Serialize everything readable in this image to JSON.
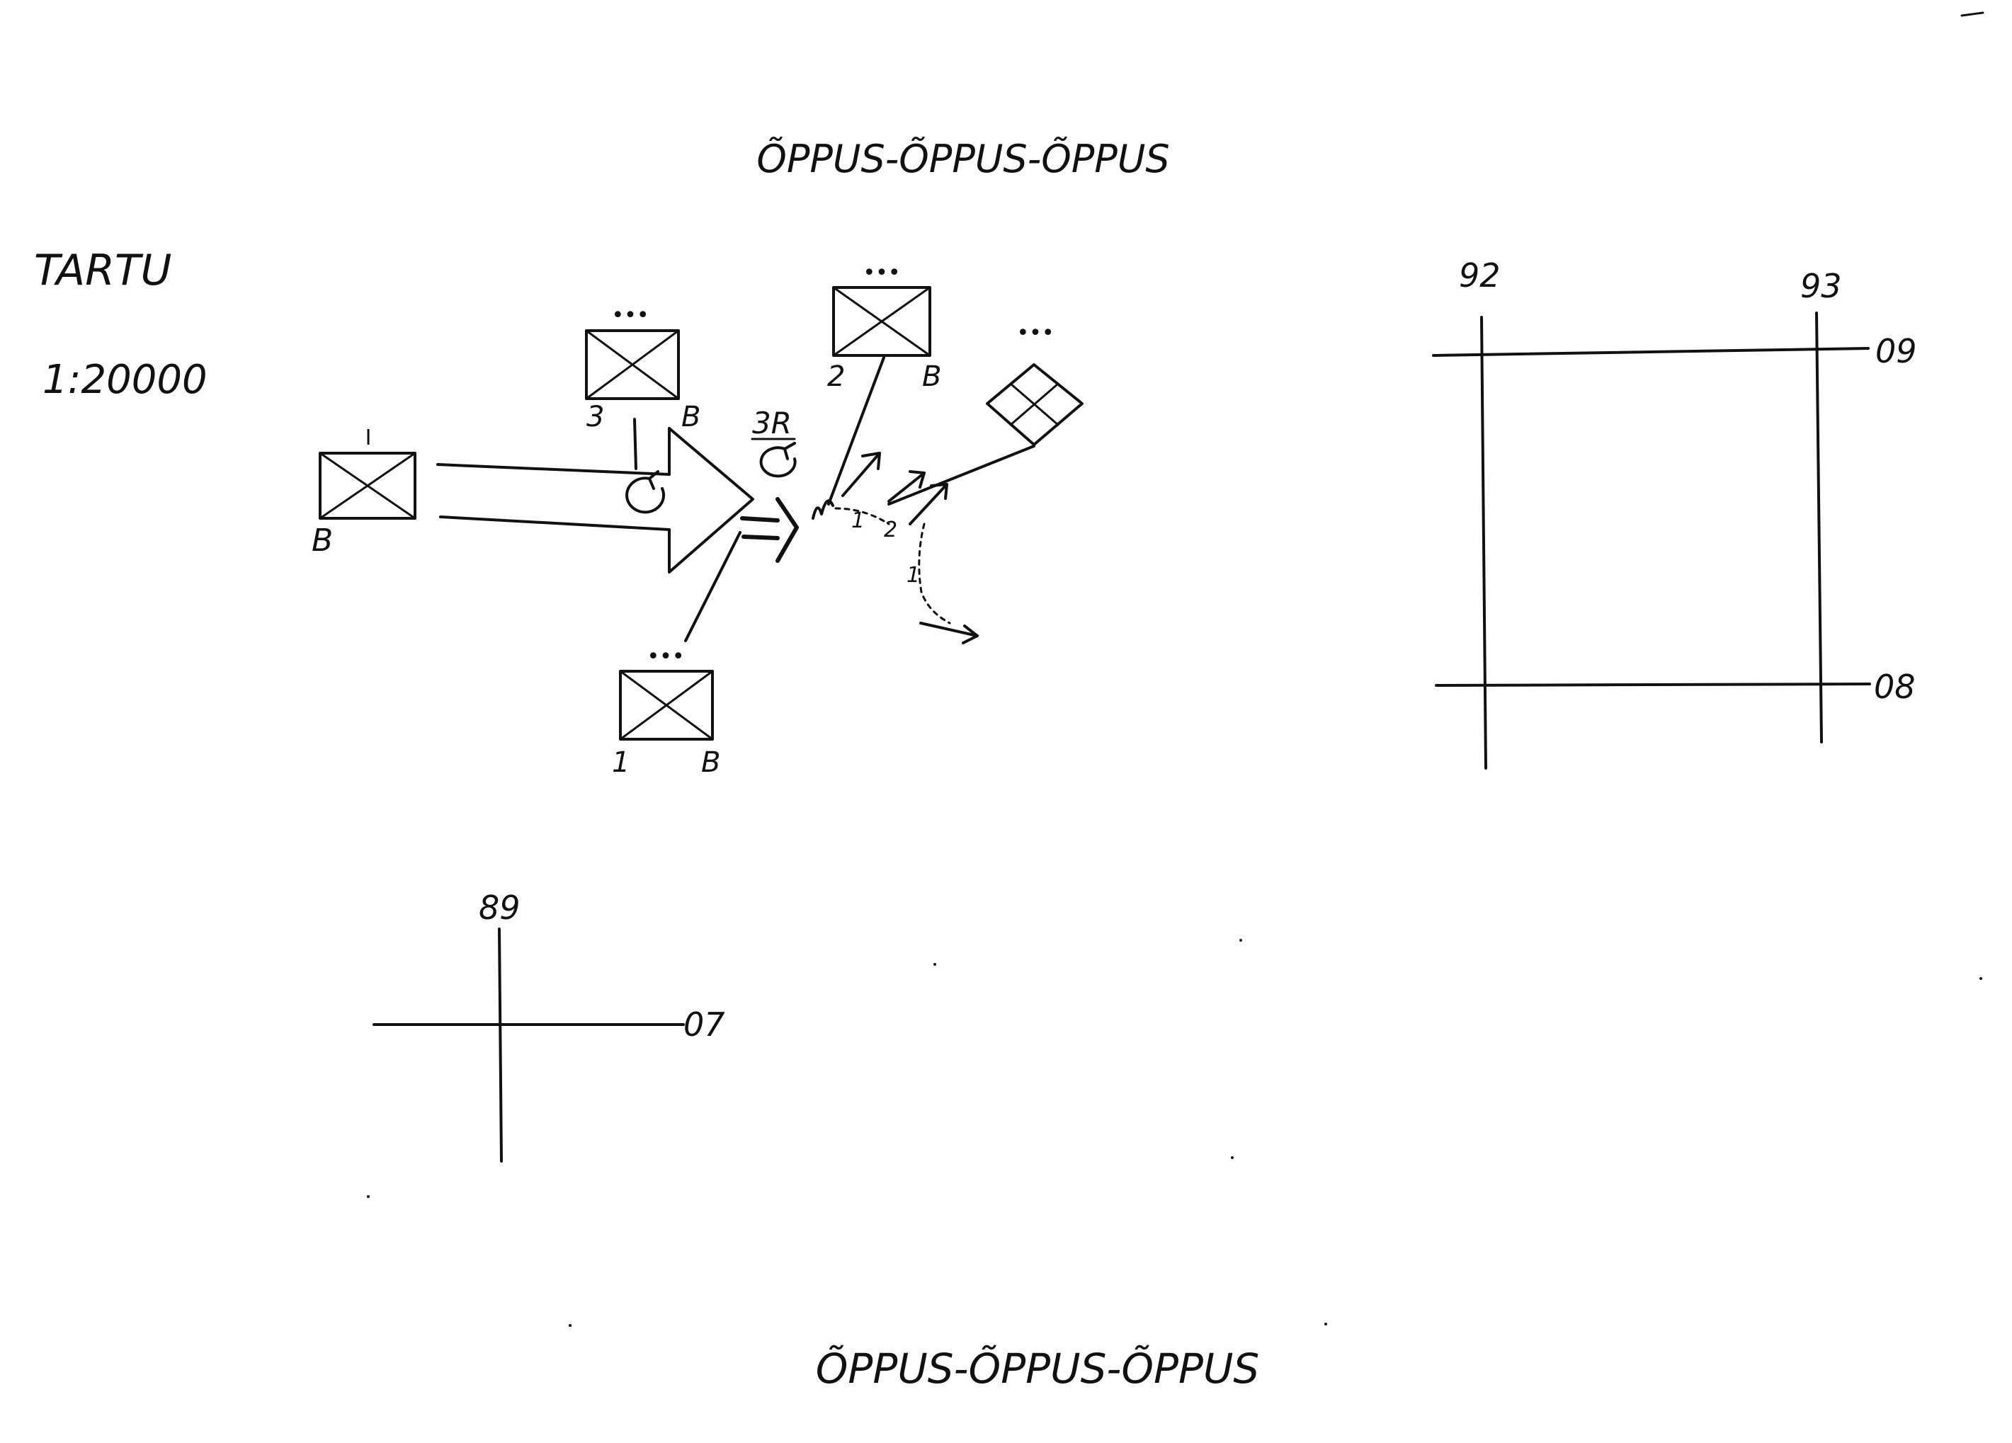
{
  "header_text": "ÕPPUS-ÕPPUS-ÕPPUS",
  "footer_text": "ÕPPUS-ÕPPUS-ÕPPUS",
  "place": "TARTU",
  "scale": "1:20000",
  "units": [
    {
      "id": "unit-1",
      "size_marks": "I",
      "label_left": "",
      "label_right": "",
      "label_bottom_left": "B",
      "symbol": "infantry"
    },
    {
      "id": "unit-3",
      "size_marks": "•••",
      "label_left": "3",
      "label_right": "B",
      "symbol": "infantry"
    },
    {
      "id": "unit-2",
      "size_marks": "•••",
      "label_left": "2",
      "label_right": "B",
      "symbol": "infantry"
    },
    {
      "id": "unit-bottom",
      "size_marks": "•••",
      "label_left": "1",
      "label_right": "B",
      "symbol": "infantry"
    },
    {
      "id": "unit-diamond",
      "size_marks": "•••",
      "symbol": "diamond-cross"
    }
  ],
  "manoeuvre_labels": {
    "rotation_label": "3R",
    "route_1": "1",
    "route_2": "2",
    "route_1b": "1"
  },
  "grid_square": {
    "x_left": "92",
    "x_right": "93",
    "y_top": "09",
    "y_bottom": "08"
  },
  "grid_cross": {
    "x": "89",
    "y": "07"
  }
}
